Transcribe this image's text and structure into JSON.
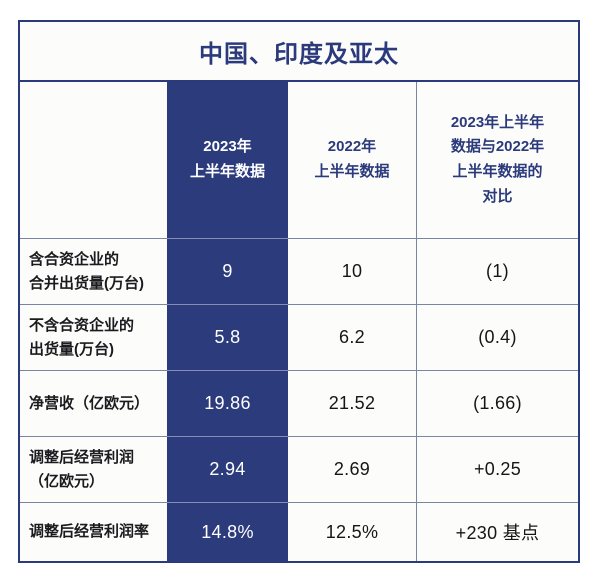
{
  "title": "中国、印度及亚太",
  "colors": {
    "navy_fill": "#2c3b7c",
    "navy_text": "#2b3a7c",
    "grid_line": "#7a84a4",
    "label_text": "#1b1b1f",
    "value_text": "#161616",
    "cell_bg": "#fcfcfa",
    "highlight_value_text": "#ffffff"
  },
  "table": {
    "header": {
      "col1": "",
      "col2": "2023年\n上半年数据",
      "col3": "2022年\n上半年数据",
      "col4": "2023年上半年\n数据与2022年\n上半年数据的\n对比"
    },
    "rows": [
      {
        "label": "含合资企业的\n合并出货量(万台)",
        "v2023": "9",
        "v2022": "10",
        "delta": "(1)"
      },
      {
        "label": "不含合资企业的\n出货量(万台)",
        "v2023": "5.8",
        "v2022": "6.2",
        "delta": "(0.4)"
      },
      {
        "label": "净营收（亿欧元）",
        "v2023": "19.86",
        "v2022": "21.52",
        "delta": "(1.66)"
      },
      {
        "label": "调整后经营利润\n（亿欧元）",
        "v2023": "2.94",
        "v2022": "2.69",
        "delta": "+0.25"
      },
      {
        "label": "调整后经营利润率",
        "v2023": "14.8%",
        "v2022": "12.5%",
        "delta": "+230 基点"
      }
    ]
  },
  "chart_data": {
    "type": "table",
    "title": "中国、印度及亚太",
    "columns": [
      "",
      "2023年上半年数据",
      "2022年上半年数据",
      "2023年上半年数据与2022年上半年数据的对比"
    ],
    "rows": [
      [
        "含合资企业的合并出货量(万台)",
        "9",
        "10",
        "(1)"
      ],
      [
        "不含合资企业的出货量(万台)",
        "5.8",
        "6.2",
        "(0.4)"
      ],
      [
        "净营收（亿欧元）",
        "19.86",
        "21.52",
        "(1.66)"
      ],
      [
        "调整后经营利润（亿欧元）",
        "2.94",
        "2.69",
        "+0.25"
      ],
      [
        "调整后经营利润率",
        "14.8%",
        "12.5%",
        "+230 基点"
      ]
    ],
    "layout": {
      "highlighted_column": "2023年上半年数据",
      "highlight_style": "navy background, white text",
      "title_position": "top, centered, navy bold"
    }
  }
}
